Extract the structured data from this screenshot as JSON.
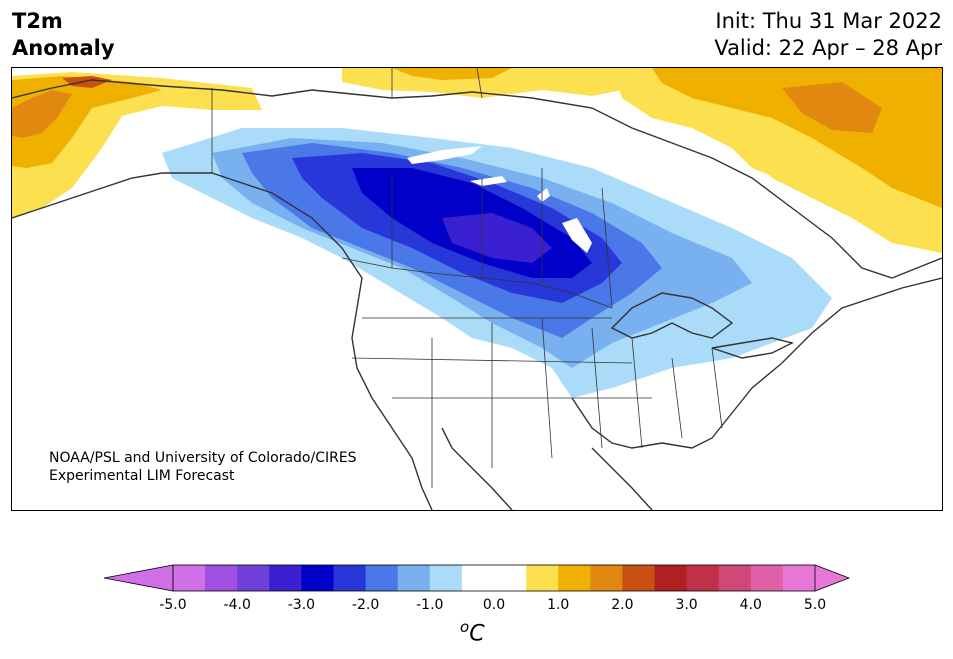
{
  "title": {
    "line1": "T2m",
    "line2": "Anomaly"
  },
  "dates": {
    "init": "Init: Thu 31 Mar 2022",
    "valid": "Valid: 22 Apr – 28 Apr"
  },
  "credit": {
    "line1": "NOAA/PSL and University of Colorado/CIRES",
    "line2": "Experimental LIM Forecast"
  },
  "colorbar": {
    "units_base": "C",
    "units_prefix": "o",
    "tick_labels": [
      "-5.0",
      "-4.0",
      "-3.0",
      "-2.0",
      "-1.0",
      "0.0",
      "1.0",
      "2.0",
      "3.0",
      "4.0",
      "5.0"
    ],
    "colors": [
      "#d070e8",
      "#a050e0",
      "#7040d8",
      "#3a20d0",
      "#0000c8",
      "#2838d8",
      "#4a78e8",
      "#78b0f0",
      "#aadcfa",
      "#ffffff",
      "#ffffff",
      "#fde050",
      "#f0b000",
      "#e08810",
      "#c85010",
      "#b02020",
      "#c03048",
      "#d04878",
      "#e060a8",
      "#e878d8"
    ],
    "extend_min_color": "#d070e8",
    "extend_max_color": "#e878d8"
  },
  "anomaly_colors": {
    "cold_1": "#aadcfa",
    "cold_2": "#78b0f0",
    "cold_3": "#4a78e8",
    "cold_4": "#2838d8",
    "cold_5": "#0000c8",
    "cold_6": "#3a20d0",
    "warm_1": "#fde050",
    "warm_2": "#f0b000",
    "warm_3": "#e08810",
    "warm_4": "#c85010"
  }
}
